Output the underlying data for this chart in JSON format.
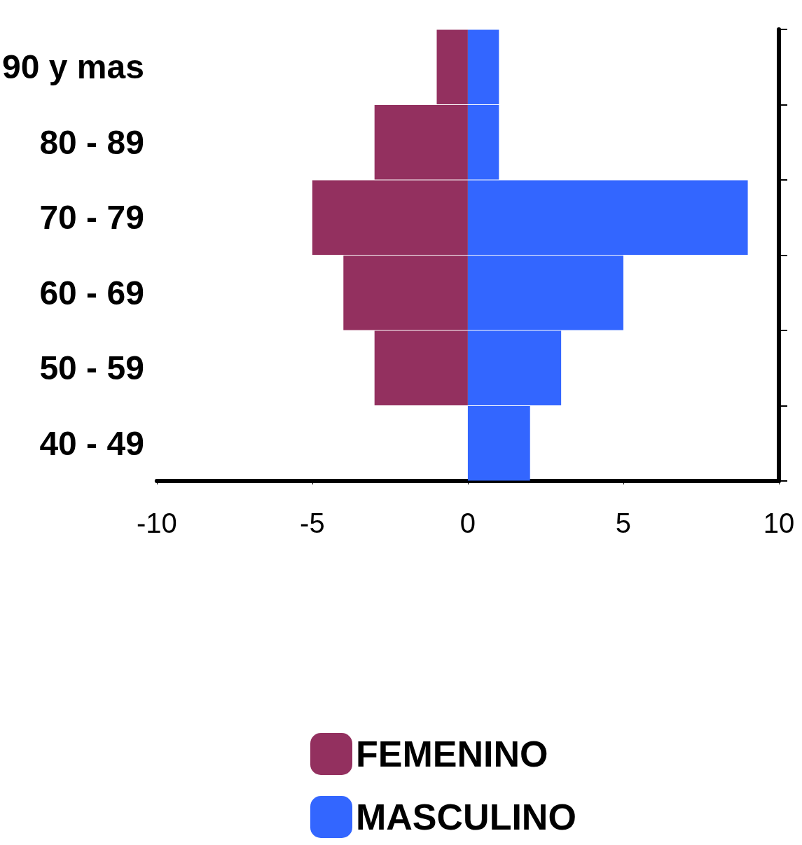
{
  "chart_data": {
    "type": "bar",
    "orientation": "horizontal",
    "stacked": true,
    "categories": [
      "90 y mas",
      "80 - 89",
      "70 - 79",
      "60 - 69",
      "50 - 59",
      "40 - 49"
    ],
    "series": [
      {
        "name": "FEMENINO",
        "color": "#93305f",
        "values": [
          -1,
          -3,
          -5,
          -4,
          -3,
          0
        ]
      },
      {
        "name": "MASCULINO",
        "color": "#3366ff",
        "values": [
          1,
          1,
          9,
          5,
          3,
          2
        ]
      }
    ],
    "xlim": [
      -10,
      10
    ],
    "xticks": [
      -10,
      -5,
      0,
      5,
      10
    ],
    "grid": false,
    "legend": "bottom"
  }
}
